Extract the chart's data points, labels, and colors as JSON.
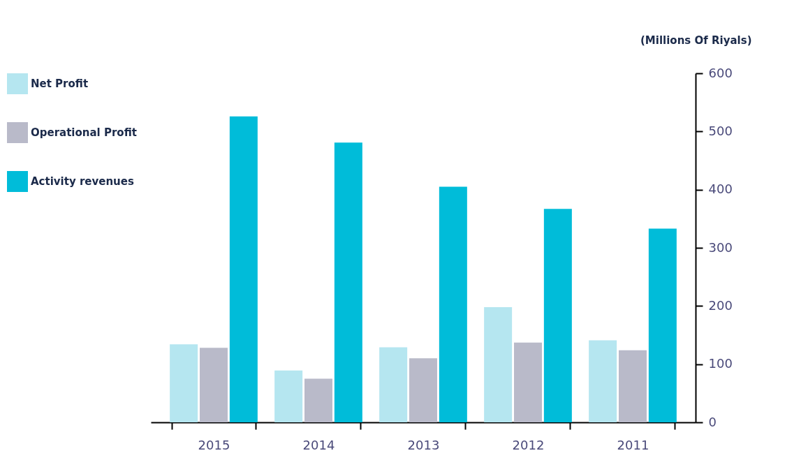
{
  "chart_data": {
    "type": "bar",
    "ylabel": "(Millions Of Riyals)",
    "categories": [
      "2015",
      "2014",
      "2013",
      "2012",
      "2011"
    ],
    "series": [
      {
        "name": "Net Profit",
        "color": "#b5e6f0",
        "values": [
          134,
          89,
          129,
          198,
          141
        ]
      },
      {
        "name": "Operational Profit",
        "color": "#b9bac9",
        "values": [
          128,
          75,
          110,
          137,
          124
        ]
      },
      {
        "name": "Activity revenues",
        "color": "#00bcd9",
        "values": [
          526,
          481,
          405,
          367,
          333
        ]
      }
    ],
    "ylim": [
      0,
      600
    ],
    "yticks": [
      0,
      100,
      200,
      300,
      400,
      500,
      600
    ],
    "grid": false,
    "legend": "left"
  }
}
